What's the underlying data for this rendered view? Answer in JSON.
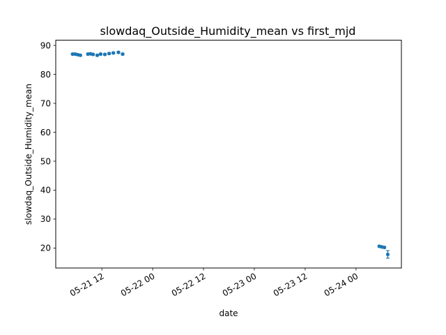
{
  "chart_data": {
    "type": "scatter",
    "title": "slowdaq_Outside_Humidity_mean vs first_mjd",
    "xlabel": "date",
    "ylabel": "slowdaq_Outside_Humidity_mean",
    "x_is_datetime": true,
    "xlim": [
      "2024-05-21T01:07:00",
      "2024-05-24T10:43:00"
    ],
    "ylim": [
      13.1,
      91.8
    ],
    "x_ticks": [
      {
        "value": "2024-05-21T12:00:00",
        "label": "05-21 12"
      },
      {
        "value": "2024-05-22T00:00:00",
        "label": "05-22 00"
      },
      {
        "value": "2024-05-22T12:00:00",
        "label": "05-22 12"
      },
      {
        "value": "2024-05-23T00:00:00",
        "label": "05-23 00"
      },
      {
        "value": "2024-05-23T12:00:00",
        "label": "05-23 12"
      },
      {
        "value": "2024-05-24T00:00:00",
        "label": "05-24 00"
      }
    ],
    "y_ticks": [
      {
        "value": 20,
        "label": "20"
      },
      {
        "value": 30,
        "label": "30"
      },
      {
        "value": 40,
        "label": "40"
      },
      {
        "value": 50,
        "label": "50"
      },
      {
        "value": 60,
        "label": "60"
      },
      {
        "value": 70,
        "label": "70"
      },
      {
        "value": 80,
        "label": "80"
      },
      {
        "value": 90,
        "label": "90"
      }
    ],
    "grid": false,
    "color": "#1f77b4",
    "points": [
      {
        "x": "2024-05-21T05:06:00",
        "y": 87.0,
        "err": 0.3
      },
      {
        "x": "2024-05-21T05:42:00",
        "y": 87.0,
        "err": 0.3
      },
      {
        "x": "2024-05-21T06:19:00",
        "y": 86.8,
        "err": 0.3
      },
      {
        "x": "2024-05-21T06:55:00",
        "y": 86.6,
        "err": 0.3
      },
      {
        "x": "2024-05-21T08:43:00",
        "y": 87.0,
        "err": 0.3
      },
      {
        "x": "2024-05-21T09:19:00",
        "y": 87.1,
        "err": 0.3
      },
      {
        "x": "2024-05-21T09:55:00",
        "y": 86.9,
        "err": 0.3
      },
      {
        "x": "2024-05-21T10:55:00",
        "y": 86.6,
        "err": 0.3
      },
      {
        "x": "2024-05-21T11:43:00",
        "y": 87.0,
        "err": 0.3
      },
      {
        "x": "2024-05-21T12:43:00",
        "y": 86.9,
        "err": 0.3
      },
      {
        "x": "2024-05-21T13:43:00",
        "y": 87.2,
        "err": 0.3
      },
      {
        "x": "2024-05-21T14:43:00",
        "y": 87.4,
        "err": 0.3
      },
      {
        "x": "2024-05-21T15:55:00",
        "y": 87.6,
        "err": 0.3
      },
      {
        "x": "2024-05-21T16:55:00",
        "y": 87.0,
        "err": 0.3
      },
      {
        "x": "2024-05-24T05:30:00",
        "y": 20.6,
        "err": 0.3
      },
      {
        "x": "2024-05-24T06:06:00",
        "y": 20.4,
        "err": 0.3
      },
      {
        "x": "2024-05-24T06:42:00",
        "y": 20.2,
        "err": 0.3
      },
      {
        "x": "2024-05-24T07:30:00",
        "y": 17.8,
        "err": 1.3
      }
    ]
  }
}
